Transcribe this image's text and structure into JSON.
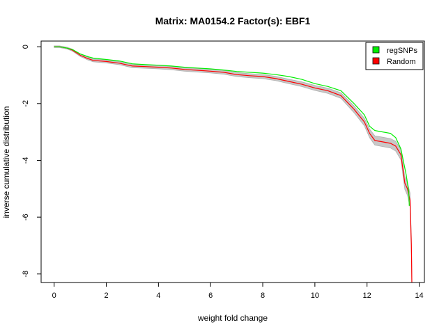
{
  "chart_data": {
    "type": "line",
    "title": "Matrix: MA0154.2 Factor(s): EBF1",
    "xlabel": "weight fold change",
    "ylabel": "inverse cumulative distribution",
    "xlim": [
      -0.5,
      14.2
    ],
    "ylim": [
      -8.3,
      0.2
    ],
    "xticks": [
      0,
      2,
      4,
      6,
      8,
      10,
      12,
      14
    ],
    "yticks": [
      0,
      -2,
      -4,
      -6,
      -8
    ],
    "xtick_labels": [
      "0",
      "2",
      "4",
      "6",
      "8",
      "10",
      "12",
      "14"
    ],
    "ytick_labels": [
      "0",
      "-2",
      "-4",
      "-6",
      "-8"
    ],
    "legend_position": "top-right",
    "grid": false,
    "series": [
      {
        "name": "regSNPs",
        "color": "#00ee00",
        "x": [
          0,
          0.2,
          0.5,
          0.7,
          1.0,
          1.3,
          1.5,
          2.0,
          2.5,
          3.0,
          3.5,
          4.0,
          4.5,
          5.0,
          5.5,
          6.0,
          6.5,
          7.0,
          7.5,
          8.0,
          8.5,
          9.0,
          9.5,
          10.0,
          10.5,
          11.0,
          11.5,
          11.9,
          12.1,
          12.3,
          12.6,
          12.9,
          13.1,
          13.3,
          13.5,
          13.6,
          13.62
        ],
        "y": [
          0,
          0,
          -0.05,
          -0.1,
          -0.25,
          -0.35,
          -0.4,
          -0.45,
          -0.5,
          -0.6,
          -0.63,
          -0.65,
          -0.68,
          -0.72,
          -0.75,
          -0.78,
          -0.82,
          -0.87,
          -0.9,
          -0.93,
          -0.98,
          -1.05,
          -1.15,
          -1.3,
          -1.4,
          -1.55,
          -2.0,
          -2.4,
          -2.8,
          -2.95,
          -3.0,
          -3.05,
          -3.2,
          -3.6,
          -4.5,
          -5.1,
          -5.6
        ]
      },
      {
        "name": "Random",
        "color": "#ff0000",
        "x": [
          0,
          0.2,
          0.5,
          0.7,
          1.0,
          1.3,
          1.5,
          2.0,
          2.5,
          3.0,
          3.5,
          4.0,
          4.5,
          5.0,
          5.5,
          6.0,
          6.5,
          7.0,
          7.5,
          8.0,
          8.5,
          9.0,
          9.5,
          10.0,
          10.5,
          11.0,
          11.5,
          11.9,
          12.1,
          12.3,
          12.6,
          12.9,
          13.1,
          13.3,
          13.45,
          13.55,
          13.65,
          13.7,
          13.72
        ],
        "y": [
          0,
          0,
          -0.05,
          -0.12,
          -0.3,
          -0.42,
          -0.48,
          -0.52,
          -0.58,
          -0.68,
          -0.7,
          -0.72,
          -0.75,
          -0.8,
          -0.83,
          -0.86,
          -0.9,
          -0.98,
          -1.02,
          -1.05,
          -1.12,
          -1.22,
          -1.32,
          -1.45,
          -1.55,
          -1.72,
          -2.2,
          -2.65,
          -3.05,
          -3.3,
          -3.35,
          -3.4,
          -3.5,
          -3.8,
          -4.8,
          -5.0,
          -5.4,
          -7.0,
          -8.3
        ]
      }
    ]
  }
}
